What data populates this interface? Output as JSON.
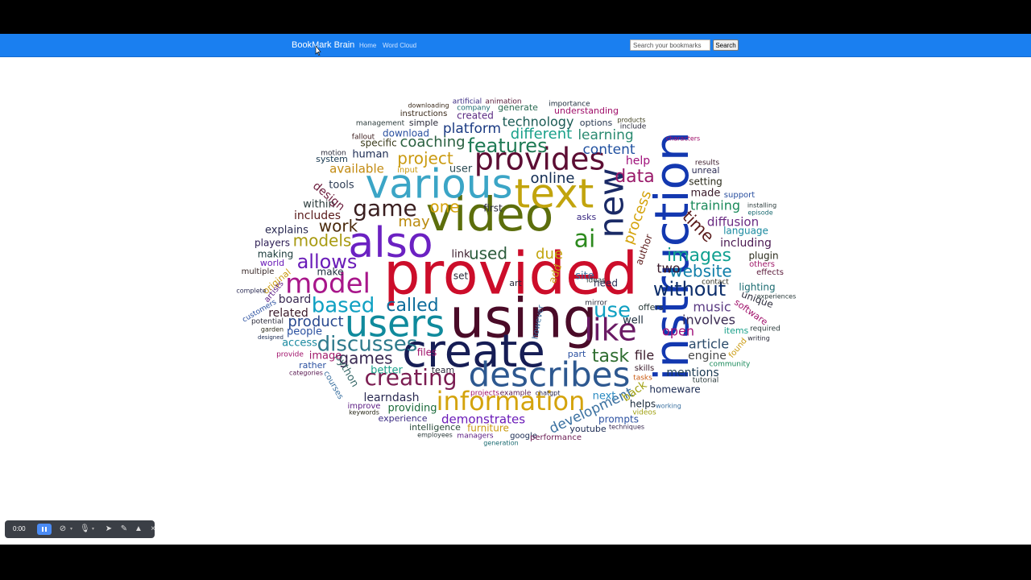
{
  "navbar": {
    "brand": "BookMark Brain",
    "links": [
      "Home",
      "Word Cloud"
    ],
    "search_placeholder": "Search your bookmarks",
    "search_button": "Search",
    "background": "#1a7ff0"
  },
  "toolbar": {
    "time": "0:00",
    "icons": [
      "pause-icon",
      "camera-off-icon",
      "mic-off-icon",
      "pointer-icon",
      "pen-icon",
      "highlighter-icon",
      "close-icon"
    ]
  },
  "cloud": {
    "words": [
      [
        "provided",
        634,
        345,
        72,
        "#cc0d2a",
        0
      ],
      [
        "using",
        650,
        400,
        68,
        "#4a0b28",
        0
      ],
      [
        "instruction",
        838,
        318,
        58,
        "#1338b0",
        -90
      ],
      [
        "video",
        608,
        270,
        58,
        "#5c6e0c",
        0
      ],
      [
        "create",
        588,
        440,
        56,
        "#161d55",
        0
      ],
      [
        "also",
        485,
        305,
        52,
        "#6b21c2",
        0
      ],
      [
        "various",
        545,
        232,
        50,
        "#3ba5c6",
        0
      ],
      [
        "text",
        688,
        244,
        50,
        "#c2a40d",
        0
      ],
      [
        "users",
        490,
        405,
        46,
        "#0f8a9c",
        0
      ],
      [
        "describes",
        682,
        468,
        42,
        "#2d5890",
        0
      ],
      [
        "new",
        762,
        252,
        42,
        "#1a2a66",
        -90
      ],
      [
        "like",
        758,
        412,
        38,
        "#6a1a64",
        0
      ],
      [
        "provides",
        670,
        200,
        38,
        "#5c0d33",
        0
      ],
      [
        "model",
        407,
        354,
        34,
        "#a8168a",
        0
      ],
      [
        "information",
        634,
        500,
        32,
        "#d4a30c",
        0
      ],
      [
        "creating",
        510,
        470,
        28,
        "#7b1d52",
        0
      ],
      [
        "game",
        478,
        260,
        28,
        "#3a1f20",
        0
      ],
      [
        "discusses",
        456,
        428,
        26,
        "#2e7a8c",
        0
      ],
      [
        "based",
        426,
        380,
        26,
        "#0fa0c2",
        0
      ],
      [
        "called",
        512,
        380,
        22,
        "#0e6d9c",
        0
      ],
      [
        "allows",
        406,
        326,
        24,
        "#6a1cb8",
        0
      ],
      [
        "features",
        630,
        182,
        24,
        "#1e7a54",
        0
      ],
      [
        "ai",
        726,
        298,
        30,
        "#2d8a1e",
        0
      ],
      [
        "images",
        868,
        318,
        22,
        "#10a090",
        0
      ],
      [
        "website",
        870,
        338,
        20,
        "#0e7ea8",
        0
      ],
      [
        "without",
        856,
        360,
        24,
        "#0d2e6a",
        0
      ],
      [
        "use",
        760,
        386,
        26,
        "#0fa0c2",
        0
      ],
      [
        "task",
        758,
        443,
        22,
        "#2e6d30",
        0
      ],
      [
        "data",
        788,
        220,
        22,
        "#9a1a6a",
        0
      ],
      [
        "different",
        672,
        167,
        18,
        "#1aa08a",
        0
      ],
      [
        "project",
        528,
        198,
        20,
        "#ca9a10",
        0
      ],
      [
        "coaching",
        537,
        177,
        18,
        "#2a6040",
        0
      ],
      [
        "platform",
        586,
        160,
        17,
        "#1a3a82",
        0
      ],
      [
        "technology",
        668,
        152,
        16,
        "#1a5a54",
        0
      ],
      [
        "content",
        756,
        186,
        17,
        "#2050a0",
        0
      ],
      [
        "learning",
        752,
        168,
        17,
        "#2a8a70",
        0
      ],
      [
        "online",
        686,
        222,
        18,
        "#102a52",
        0
      ],
      [
        "one",
        552,
        258,
        20,
        "#d4a30c",
        0
      ],
      [
        "may",
        514,
        276,
        18,
        "#ba8a0c",
        0
      ],
      [
        "work",
        420,
        282,
        20,
        "#4a2a0c",
        0
      ],
      [
        "models",
        400,
        300,
        20,
        "#a89a10",
        0
      ],
      [
        "product",
        392,
        400,
        18,
        "#2a4a90",
        0
      ],
      [
        "games",
        454,
        446,
        20,
        "#3a2a52",
        0
      ],
      [
        "used",
        606,
        316,
        20,
        "#2a5a3a",
        0
      ],
      [
        "due",
        682,
        316,
        18,
        "#c2a40d",
        0
      ],
      [
        "time",
        866,
        282,
        20,
        "#5a1a1a",
        45
      ],
      [
        "process",
        792,
        270,
        18,
        "#d4a30c",
        -70
      ],
      [
        "training",
        888,
        256,
        16,
        "#1a8a5a",
        0
      ],
      [
        "diffusion",
        910,
        276,
        15,
        "#6a2a82",
        0
      ],
      [
        "language",
        926,
        287,
        12,
        "#1a8aa0",
        0
      ],
      [
        "including",
        926,
        302,
        14,
        "#4a1a52",
        0
      ],
      [
        "music",
        884,
        382,
        16,
        "#5a3a82",
        0
      ],
      [
        "involves",
        880,
        398,
        16,
        "#3a2a52",
        0
      ],
      [
        "open",
        842,
        412,
        16,
        "#a0107a",
        0
      ],
      [
        "article",
        880,
        428,
        16,
        "#2a4a6a",
        0
      ],
      [
        "engine",
        878,
        442,
        14,
        "#4a4a4a",
        0
      ],
      [
        "mentions",
        860,
        463,
        14,
        "#1a3a52",
        0
      ],
      [
        "homeware",
        838,
        484,
        12,
        "#1a2a52",
        0
      ],
      [
        "file",
        800,
        442,
        16,
        "#3a1a2a",
        0
      ],
      [
        "development",
        734,
        510,
        17,
        "#3a70a0",
        -25
      ],
      [
        "demonstrates",
        600,
        521,
        15,
        "#6a1ab8",
        0
      ],
      [
        "learndash",
        486,
        494,
        14,
        "#2a2a52",
        0
      ],
      [
        "providing",
        512,
        507,
        13,
        "#1a6a3a",
        0
      ],
      [
        "experience",
        500,
        520,
        11,
        "#3a2a82",
        0
      ],
      [
        "intelligence",
        540,
        531,
        11,
        "#2a4a3a",
        0
      ],
      [
        "furniture",
        606,
        532,
        12,
        "#ca9a10",
        0
      ],
      [
        "google",
        650,
        541,
        10,
        "#1a2a52",
        0
      ],
      [
        "performance",
        690,
        543,
        10,
        "#6a1a52",
        0
      ],
      [
        "youtube",
        730,
        533,
        11,
        "#1a2a52",
        0
      ],
      [
        "prompts",
        768,
        521,
        12,
        "#2a50a0",
        0
      ],
      [
        "helps",
        798,
        502,
        12,
        "#1a2a3a",
        0
      ],
      [
        "next",
        750,
        492,
        13,
        "#2a8ac2",
        0
      ],
      [
        "back",
        788,
        486,
        14,
        "#a0a010",
        -35
      ],
      [
        "better",
        480,
        460,
        13,
        "#1aa08a",
        0
      ],
      [
        "python",
        430,
        460,
        13,
        "#3a6a6a",
        60
      ],
      [
        "image",
        404,
        442,
        13,
        "#a01a6a",
        0
      ],
      [
        "access",
        372,
        426,
        13,
        "#1a8aa0",
        0
      ],
      [
        "people",
        378,
        412,
        13,
        "#2a50a0",
        0
      ],
      [
        "related",
        358,
        389,
        14,
        "#3a1a2a",
        0
      ],
      [
        "board",
        366,
        372,
        14,
        "#3a2a52",
        0
      ],
      [
        "explains",
        356,
        286,
        13,
        "#2a2a52",
        0
      ],
      [
        "players",
        338,
        302,
        12,
        "#2a1a52",
        0
      ],
      [
        "making",
        342,
        316,
        12,
        "#1a3a3a",
        0
      ],
      [
        "includes",
        394,
        268,
        14,
        "#5a1a1a",
        0
      ],
      [
        "within",
        396,
        254,
        13,
        "#2a3a3a",
        0
      ],
      [
        "tools",
        424,
        230,
        13,
        "#2a3a52",
        0
      ],
      [
        "available",
        443,
        210,
        15,
        "#c28a10",
        0
      ],
      [
        "design",
        408,
        244,
        14,
        "#6a1a3a",
        40
      ],
      [
        "user",
        572,
        210,
        13,
        "#2a4a52",
        0
      ],
      [
        "human",
        460,
        192,
        13,
        "#1a2a52",
        0
      ],
      [
        "specific",
        470,
        178,
        12,
        "#3a3a1a",
        0
      ],
      [
        "download",
        504,
        166,
        12,
        "#2a50a0",
        0
      ],
      [
        "simple",
        526,
        153,
        11,
        "#2a2a3a",
        0
      ],
      [
        "created",
        590,
        144,
        12,
        "#5a2a82",
        0
      ],
      [
        "instructions",
        526,
        141,
        10,
        "#3a2a1a",
        0
      ],
      [
        "management",
        472,
        153,
        9,
        "#2a3a3a",
        0
      ],
      [
        "generate",
        643,
        134,
        11,
        "#2a6a52",
        0
      ],
      [
        "understanding",
        728,
        138,
        11,
        "#a0106a",
        0
      ],
      [
        "options",
        740,
        153,
        11,
        "#2a3a52",
        0
      ],
      [
        "company",
        588,
        134,
        9,
        "#1a6a70",
        0
      ],
      [
        "artificial",
        580,
        126,
        9,
        "#3a2a82",
        0
      ],
      [
        "animation",
        625,
        126,
        9,
        "#5a1a3a",
        0
      ],
      [
        "importance",
        707,
        129,
        9,
        "#1a2a3a",
        0
      ],
      [
        "downloading",
        532,
        131,
        8,
        "#3a2a1a",
        0
      ],
      [
        "fallout",
        451,
        170,
        9,
        "#3a1a1a",
        0
      ],
      [
        "system",
        412,
        198,
        11,
        "#1a3a52",
        0
      ],
      [
        "motion",
        414,
        190,
        9,
        "#2a2a3a",
        0
      ],
      [
        "input",
        506,
        211,
        10,
        "#ca9a10",
        0
      ],
      [
        "help",
        792,
        200,
        14,
        "#a0107a",
        0
      ],
      [
        "setting",
        876,
        226,
        12,
        "#2a2a1a",
        0
      ],
      [
        "made",
        876,
        240,
        13,
        "#3a1a2a",
        0
      ],
      [
        "support",
        918,
        242,
        10,
        "#2a50a0",
        0
      ],
      [
        "unreal",
        876,
        212,
        11,
        "#2a2a52",
        0
      ],
      [
        "results",
        878,
        202,
        9,
        "#3a1a2a",
        0
      ],
      [
        "include",
        786,
        157,
        9,
        "#2a2a3a",
        0
      ],
      [
        "products",
        784,
        149,
        8,
        "#3a3a1a",
        0
      ],
      [
        "site",
        726,
        343,
        13,
        "#3a70a0",
        0
      ],
      [
        "asks",
        728,
        270,
        11,
        "#3a2a82",
        0
      ],
      [
        "author",
        800,
        310,
        12,
        "#5a1a1a",
        -70
      ],
      [
        "two",
        830,
        334,
        16,
        "#3a1a2a",
        0
      ],
      [
        "need",
        752,
        352,
        12,
        "#2a2a52",
        0
      ],
      [
        "offers",
        808,
        382,
        11,
        "#2a3a3a",
        0
      ],
      [
        "well",
        786,
        398,
        13,
        "#1a2a3a",
        0
      ],
      [
        "plugin",
        948,
        318,
        12,
        "#2a2a1a",
        0
      ],
      [
        "others",
        946,
        328,
        10,
        "#a01a6a",
        0
      ],
      [
        "effects",
        956,
        338,
        10,
        "#5a1a3a",
        0
      ],
      [
        "lighting",
        940,
        357,
        12,
        "#1a6a70",
        0
      ],
      [
        "unique",
        940,
        372,
        12,
        "#2a2a3a",
        20
      ],
      [
        "software",
        932,
        388,
        11,
        "#a0106a",
        35
      ],
      [
        "required",
        950,
        408,
        9,
        "#2a3a3a",
        0
      ],
      [
        "items",
        914,
        411,
        11,
        "#1aa08a",
        0
      ],
      [
        "found",
        916,
        432,
        10,
        "#ca9a10",
        -50
      ],
      [
        "community",
        906,
        452,
        9,
        "#1a8a5a",
        0
      ],
      [
        "tutorial",
        876,
        472,
        9,
        "#2a3a3a",
        0
      ],
      [
        "skills",
        800,
        457,
        10,
        "#3a1a2a",
        0
      ],
      [
        "tasks",
        798,
        469,
        9,
        "#ca5a10",
        0
      ],
      [
        "working",
        830,
        504,
        8,
        "#3a70a0",
        0
      ],
      [
        "videos",
        800,
        512,
        9,
        "#a0a010",
        0
      ],
      [
        "techniques",
        778,
        530,
        8,
        "#3a2a52",
        0
      ],
      [
        "managers",
        590,
        541,
        9,
        "#5a1a82",
        0
      ],
      [
        "generation",
        622,
        550,
        8,
        "#1a6a70",
        0
      ],
      [
        "employees",
        540,
        540,
        8,
        "#2a3a3a",
        0
      ],
      [
        "improve",
        452,
        504,
        10,
        "#5a1a82",
        0
      ],
      [
        "keywords",
        452,
        512,
        8,
        "#2a2a1a",
        0
      ],
      [
        "courses",
        414,
        478,
        10,
        "#3a70a0",
        60
      ],
      [
        "rather",
        388,
        454,
        11,
        "#2a50a0",
        0
      ],
      [
        "categories",
        380,
        463,
        8,
        "#5a1a52",
        0
      ],
      [
        "provide",
        360,
        440,
        9,
        "#a0106a",
        0
      ],
      [
        "designed",
        336,
        419,
        7,
        "#1a2a52",
        0
      ],
      [
        "potential",
        332,
        399,
        9,
        "#2a2a3a",
        0
      ],
      [
        "garden",
        338,
        409,
        8,
        "#2a2a1a",
        0
      ],
      [
        "world",
        338,
        327,
        11,
        "#6a1ab8",
        0
      ],
      [
        "multiple",
        320,
        337,
        10,
        "#3a2a2a",
        0
      ],
      [
        "original",
        344,
        350,
        11,
        "#ca9a10",
        -40
      ],
      [
        "artists",
        340,
        362,
        10,
        "#5a1a82",
        -50
      ],
      [
        "complete",
        312,
        361,
        8,
        "#2a2a52",
        0
      ],
      [
        "customers",
        322,
        386,
        9,
        "#2a50a0",
        -30
      ],
      [
        "characters",
        848,
        172,
        8,
        "#a0106a",
        0
      ],
      [
        "installing",
        946,
        255,
        8,
        "#2a3a3a",
        0
      ],
      [
        "episode",
        944,
        264,
        8,
        "#1a6a70",
        0
      ],
      [
        "contact",
        888,
        350,
        9,
        "#2a2a1a",
        0
      ],
      [
        "experiences",
        964,
        368,
        8,
        "#2a3a3a",
        0
      ],
      [
        "writing",
        942,
        420,
        8,
        "#2a2a3a",
        0
      ],
      [
        "first",
        612,
        259,
        12,
        "#2a2a3a",
        0
      ],
      [
        "link",
        572,
        316,
        13,
        "#3a1a2a",
        0
      ],
      [
        "art",
        640,
        352,
        11,
        "#2a2a3a",
        0
      ],
      [
        "set",
        572,
        343,
        12,
        "#2a2a3a",
        0
      ],
      [
        "make",
        410,
        338,
        12,
        "#1a2a3a",
        0
      ],
      [
        "files",
        530,
        438,
        12,
        "#a0106a",
        0
      ],
      [
        "team",
        550,
        460,
        11,
        "#2a2a3a",
        0
      ],
      [
        "projects",
        602,
        488,
        9,
        "#a0106a",
        0
      ],
      [
        "example",
        640,
        488,
        9,
        "#5a1a52",
        0
      ],
      [
        "chatgpt",
        680,
        488,
        8,
        "#2a2a52",
        0
      ],
      [
        "part",
        716,
        440,
        11,
        "#2a50a0",
        0
      ],
      [
        "ideas",
        740,
        348,
        9,
        "#2a3a3a",
        0
      ],
      [
        "mirror",
        740,
        376,
        9,
        "#2a2a3a",
        0
      ],
      [
        "add",
        690,
        340,
        13,
        "#ca9a10",
        -70
      ],
      [
        "however",
        668,
        400,
        10,
        "#3a70a0",
        -80
      ]
    ]
  }
}
